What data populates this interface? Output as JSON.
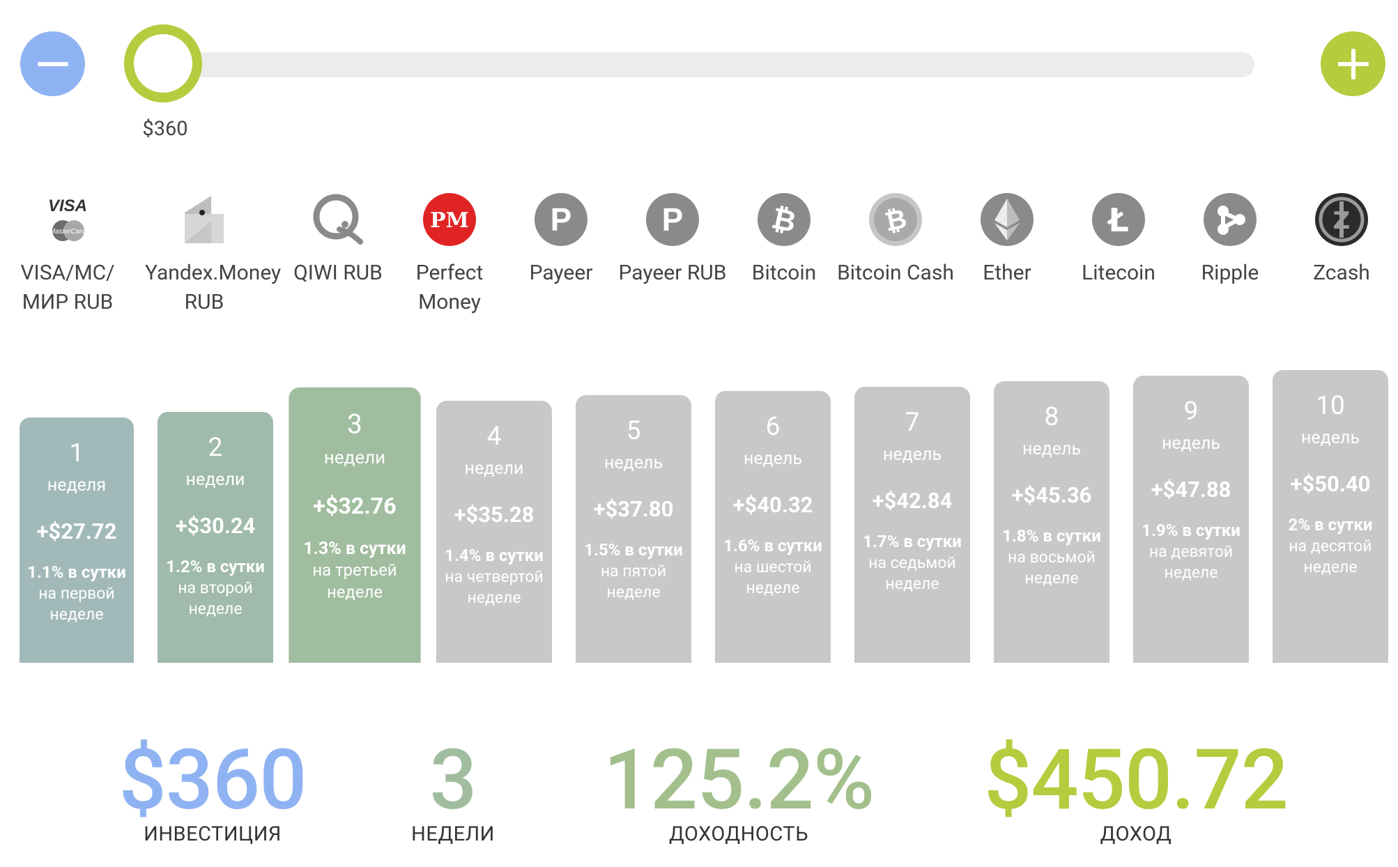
{
  "slider": {
    "value_label": "$360",
    "colors": {
      "minus": "#8fb3f2",
      "plus": "#b6cb3e",
      "track": "#ececec"
    }
  },
  "payment_methods": [
    {
      "label": "VISA/MC/ МИР RUB",
      "icon": "visa-mastercard-icon"
    },
    {
      "label": "Yandex.Money RUB",
      "icon": "yandex-money-icon"
    },
    {
      "label": "QIWI RUB",
      "icon": "qiwi-icon"
    },
    {
      "label": "Perfect Money",
      "icon": "perfect-money-icon",
      "icon_text": "PM"
    },
    {
      "label": "Payeer",
      "icon": "payeer-icon",
      "icon_text": "P"
    },
    {
      "label": "Payeer RUB",
      "icon": "payeer-icon",
      "icon_text": "P"
    },
    {
      "label": "Bitcoin",
      "icon": "bitcoin-icon",
      "icon_text": "₿"
    },
    {
      "label": "Bitcoin Cash",
      "icon": "bitcoin-cash-icon",
      "icon_text": "₿"
    },
    {
      "label": "Ether",
      "icon": "ether-icon"
    },
    {
      "label": "Litecoin",
      "icon": "litecoin-icon",
      "icon_text": "Ł"
    },
    {
      "label": "Ripple",
      "icon": "ripple-icon"
    },
    {
      "label": "Zcash",
      "icon": "zcash-icon",
      "icon_text": "Z"
    }
  ],
  "weeks": [
    {
      "num": "1",
      "unit": "неделя",
      "gain": "+$27.72",
      "rate": "1.1% в сутки",
      "note": "на первой неделе",
      "color": "#a2b9b9"
    },
    {
      "num": "2",
      "unit": "недели",
      "gain": "+$30.24",
      "rate": "1.2% в сутки",
      "note": "на второй неделе",
      "color": "#a0baab"
    },
    {
      "num": "3",
      "unit": "недели",
      "gain": "+$32.76",
      "rate": "1.3% в сутки",
      "note": "на третьей неделе",
      "color": "#a1bd9f",
      "selected": true
    },
    {
      "num": "4",
      "unit": "недели",
      "gain": "+$35.28",
      "rate": "1.4% в сутки",
      "note": "на четвертой неделе",
      "color": "#c8c8c8"
    },
    {
      "num": "5",
      "unit": "недель",
      "gain": "+$37.80",
      "rate": "1.5% в сутки",
      "note": "на пятой неделе",
      "color": "#c8c8c8"
    },
    {
      "num": "6",
      "unit": "недель",
      "gain": "+$40.32",
      "rate": "1.6% в сутки",
      "note": "на шестой неделе",
      "color": "#c8c8c8"
    },
    {
      "num": "7",
      "unit": "недель",
      "gain": "+$42.84",
      "rate": "1.7% в сутки",
      "note": "на седьмой неделе",
      "color": "#c8c8c8"
    },
    {
      "num": "8",
      "unit": "недель",
      "gain": "+$45.36",
      "rate": "1.8% в сутки",
      "note": "на восьмой неделе",
      "color": "#c8c8c8"
    },
    {
      "num": "9",
      "unit": "недель",
      "gain": "+$47.88",
      "rate": "1.9% в сутки",
      "note": "на девятой неделе",
      "color": "#c8c8c8"
    },
    {
      "num": "10",
      "unit": "недель",
      "gain": "+$50.40",
      "rate": "2% в сутки",
      "note": "на десятой неделе",
      "color": "#c8c8c8"
    }
  ],
  "stats": {
    "investment": {
      "value": "$360",
      "label": "ИНВЕСТИЦИЯ",
      "color": "#8fb3f2"
    },
    "weeks": {
      "value": "3",
      "label": "НЕДЕЛИ",
      "color": "#a1bd9f"
    },
    "yield": {
      "value": "125.2%",
      "label": "ДОХОДНОСТЬ",
      "color": "#a3c08c"
    },
    "income": {
      "value": "$450.72",
      "label": "ДОХОД",
      "color": "#b6cb3e"
    }
  }
}
